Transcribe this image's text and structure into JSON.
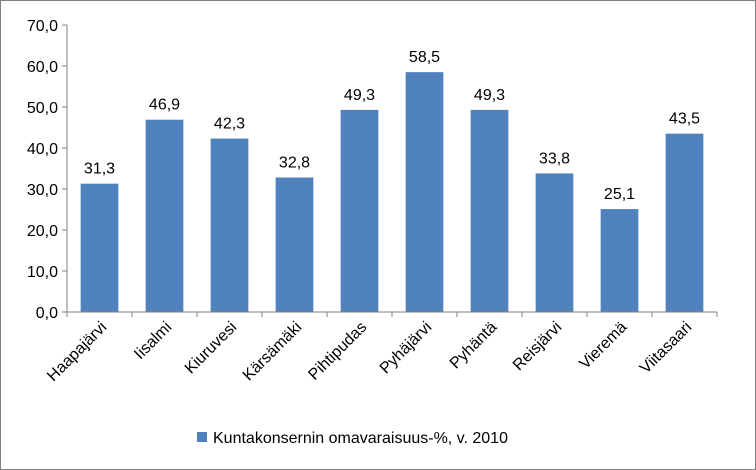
{
  "chart_data": {
    "type": "bar",
    "categories": [
      "Haapajärvi",
      "Iisalmi",
      "Kiuruvesi",
      "Kärsämäki",
      "Pihtipudas",
      "Pyhäjärvi",
      "Pyhäntä",
      "Reisjärvi",
      "Vieremä",
      "Viitasaari"
    ],
    "series": [
      {
        "name": "Kuntakonsernin omavaraisuus-%, v. 2010",
        "values": [
          31.3,
          46.9,
          42.3,
          32.8,
          49.3,
          58.5,
          49.3,
          33.8,
          25.1,
          43.5
        ],
        "value_labels": [
          "31,3",
          "46,9",
          "42,3",
          "32,8",
          "49,3",
          "58,5",
          "49,3",
          "33,8",
          "25,1",
          "43,5"
        ],
        "color": "#4f81bd"
      }
    ],
    "title": "",
    "xlabel": "",
    "ylabel": "",
    "ylim": [
      0,
      70
    ],
    "yticks": [
      0,
      10,
      20,
      30,
      40,
      50,
      60,
      70
    ],
    "ytick_labels": [
      "0,0",
      "10,0",
      "20,0",
      "30,0",
      "40,0",
      "50,0",
      "60,0",
      "70,0"
    ],
    "grid": false,
    "legend": "bottom",
    "axis_color": "#808080"
  }
}
